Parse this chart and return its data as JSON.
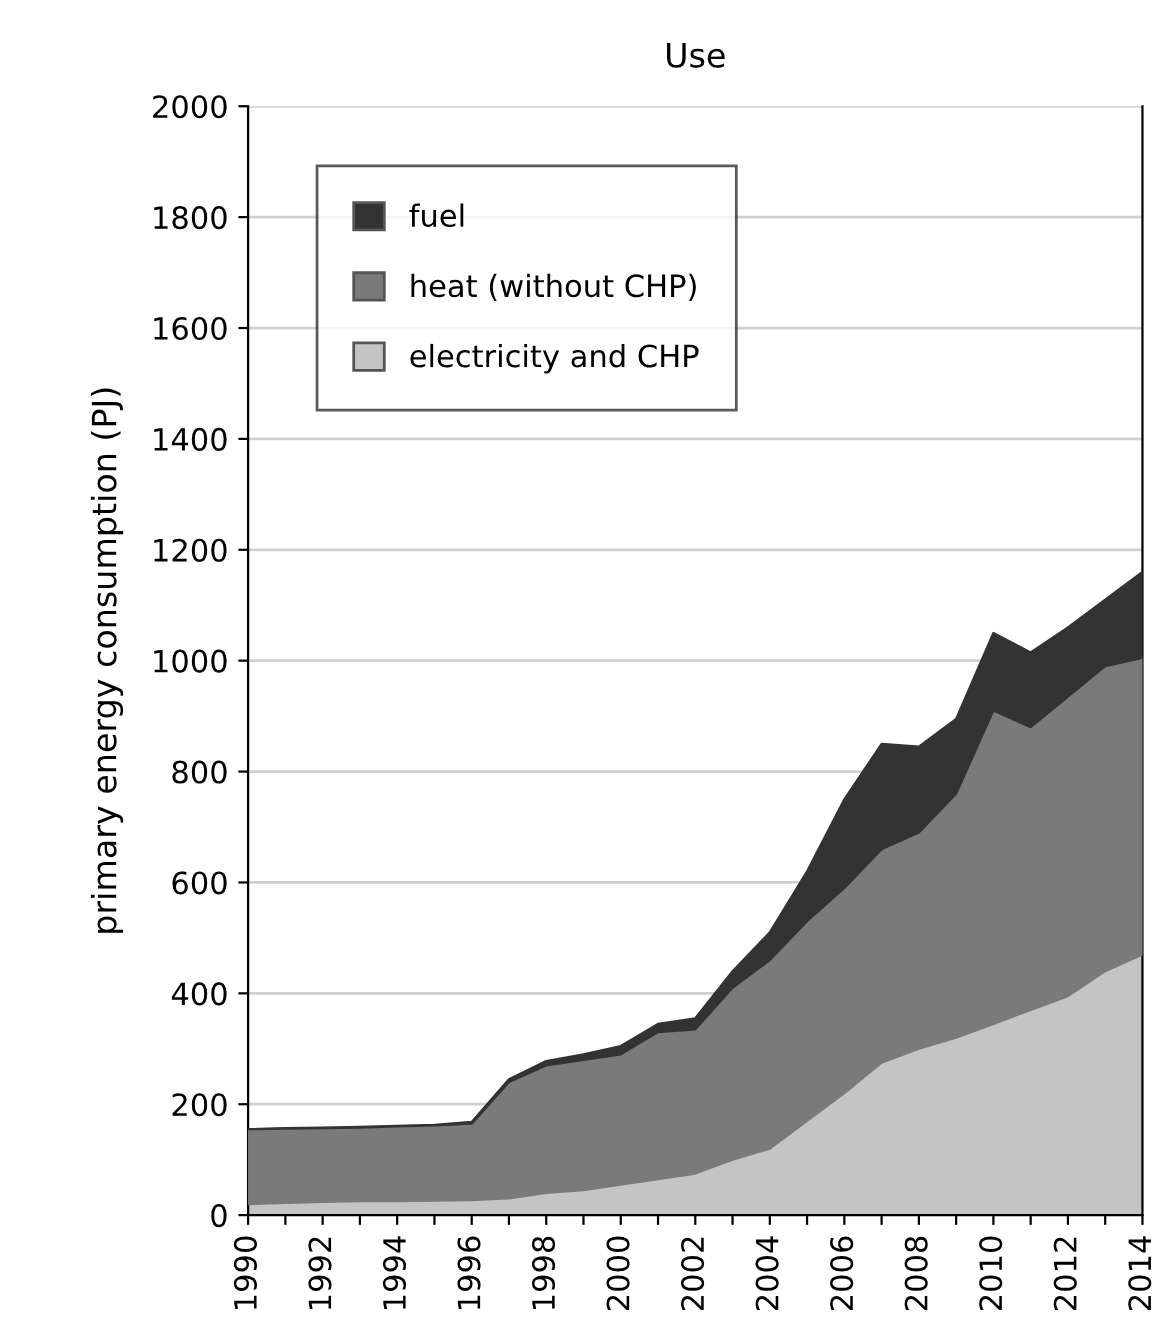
{
  "chart_data": {
    "type": "area",
    "stacked": true,
    "title": "Use",
    "ylabel": "primary energy consumption (PJ)",
    "x": [
      1990,
      1991,
      1992,
      1993,
      1994,
      1995,
      1996,
      1997,
      1998,
      1999,
      2000,
      2001,
      2002,
      2003,
      2004,
      2005,
      2006,
      2007,
      2008,
      2009,
      2010,
      2011,
      2012,
      2013,
      2014
    ],
    "series": [
      {
        "name": "electricity and CHP",
        "color": "#c4c4c4",
        "values": [
          20,
          22,
          24,
          25,
          25,
          26,
          27,
          30,
          40,
          45,
          55,
          65,
          75,
          100,
          120,
          170,
          220,
          275,
          300,
          320,
          345,
          370,
          395,
          440,
          470
        ]
      },
      {
        "name": "heat (without CHP)",
        "color": "#7a7a7a",
        "values": [
          135,
          134,
          133,
          133,
          135,
          136,
          138,
          210,
          230,
          235,
          235,
          265,
          260,
          310,
          340,
          360,
          370,
          385,
          390,
          440,
          565,
          510,
          540,
          550,
          535
        ]
      },
      {
        "name": "fuel",
        "color": "#333333",
        "values": [
          0,
          1,
          1,
          1,
          1,
          1,
          3,
          5,
          8,
          10,
          15,
          15,
          20,
          30,
          50,
          90,
          160,
          190,
          155,
          135,
          140,
          135,
          125,
          120,
          155
        ]
      }
    ],
    "xlim": [
      1990,
      2014
    ],
    "xticks": [
      1990,
      {
        "value": 1991,
        "label": null
      },
      1992,
      {
        "value": 1993,
        "label": null
      },
      1994,
      {
        "value": 1995,
        "label": null
      },
      1996,
      {
        "value": 1997,
        "label": null
      },
      1998,
      {
        "value": 1999,
        "label": null
      },
      2000,
      {
        "value": 2001,
        "label": null
      },
      2002,
      {
        "value": 2003,
        "label": null
      },
      2004,
      {
        "value": 2005,
        "label": null
      },
      2006,
      {
        "value": 2007,
        "label": null
      },
      2008,
      {
        "value": 2009,
        "label": null
      },
      2010,
      {
        "value": 2011,
        "label": null
      },
      2012,
      {
        "value": 2013,
        "label": null
      },
      2014
    ],
    "ylim": [
      0,
      2000
    ],
    "yticks": [
      0,
      200,
      400,
      600,
      800,
      1000,
      1200,
      1400,
      1600,
      1800,
      2000
    ],
    "grid": "y",
    "legend": "top left"
  }
}
